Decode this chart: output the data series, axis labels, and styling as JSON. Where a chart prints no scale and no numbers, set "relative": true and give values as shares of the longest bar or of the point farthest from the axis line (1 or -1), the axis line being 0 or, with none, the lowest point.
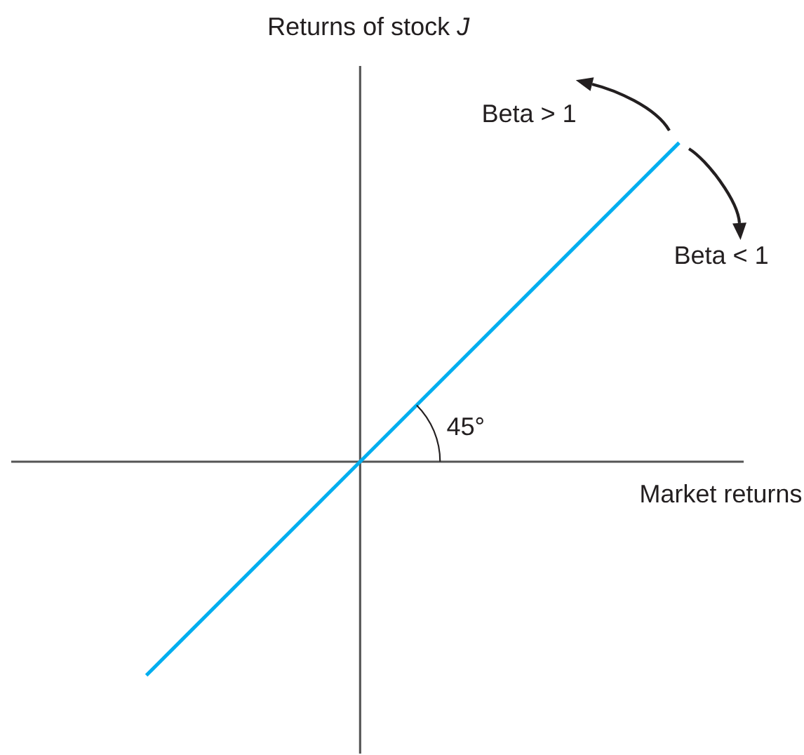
{
  "chart_data": {
    "type": "line",
    "xlabel": "Market returns",
    "ylabel": "Returns of stock *J*",
    "categories": [
      null,
      null
    ],
    "values": [
      -0.67,
      1
    ],
    "relative": true,
    "color": "#00aeef",
    "annotations": [
      "Beta > 1",
      "Beta < 1",
      "45°"
    ]
  }
}
